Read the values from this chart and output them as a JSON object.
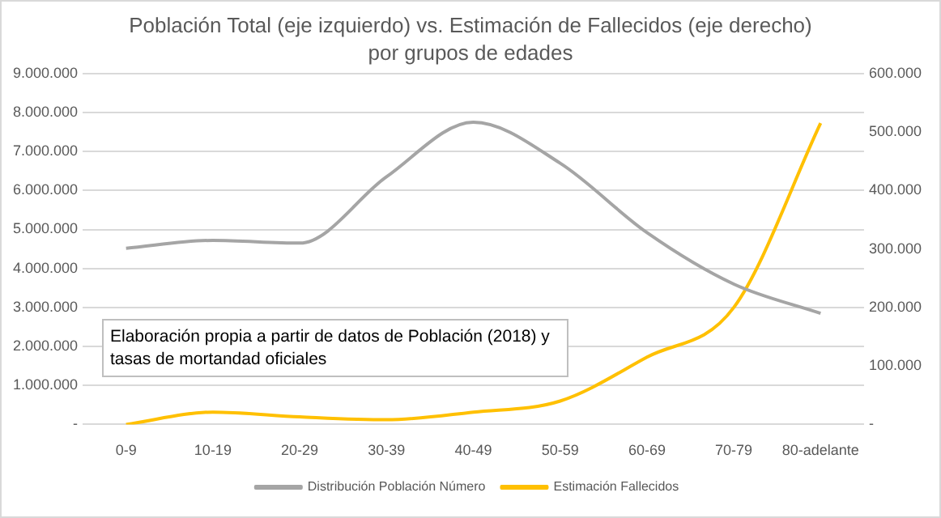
{
  "chart_data": {
    "type": "line",
    "title": "Población Total (eje izquierdo) vs. Estimación de Fallecidos (eje derecho)",
    "subtitle": "por grupos de edades",
    "categories": [
      "0-9",
      "10-19",
      "20-29",
      "30-39",
      "40-49",
      "50-59",
      "60-69",
      "70-79",
      "80-adelante"
    ],
    "series": [
      {
        "name": "Distribución Población Número",
        "color": "#a5a5a5",
        "values": [
          4520000,
          4720000,
          4650000,
          6350000,
          7750000,
          6700000,
          4920000,
          3600000,
          2850000
        ]
      },
      {
        "name": "Estimación Fallecidos",
        "color": "#ffc000",
        "axis": "y2",
        "values": [
          0,
          21000,
          13000,
          8000,
          21000,
          40000,
          115000,
          200000,
          515000
        ]
      }
    ],
    "ylim": [
      0,
      9000000
    ],
    "yticks": [
      {
        "value": 0,
        "label": "-"
      },
      {
        "value": 1000000,
        "label": "1.000.000"
      },
      {
        "value": 2000000,
        "label": "2.000.000"
      },
      {
        "value": 3000000,
        "label": "3.000.000"
      },
      {
        "value": 4000000,
        "label": "4.000.000"
      },
      {
        "value": 5000000,
        "label": "5.000.000"
      },
      {
        "value": 6000000,
        "label": "6.000.000"
      },
      {
        "value": 7000000,
        "label": "7.000.000"
      },
      {
        "value": 8000000,
        "label": "8.000.000"
      },
      {
        "value": 9000000,
        "label": "9.000.000"
      }
    ],
    "y2lim": [
      0,
      600000
    ],
    "y2ticks": [
      {
        "value": 0,
        "label": "-"
      },
      {
        "value": 100000,
        "label": "100.000"
      },
      {
        "value": 200000,
        "label": "200.000"
      },
      {
        "value": 300000,
        "label": "300.000"
      },
      {
        "value": 400000,
        "label": "400.000"
      },
      {
        "value": 500000,
        "label": "500.000"
      },
      {
        "value": 600000,
        "label": "600.000"
      }
    ],
    "grid": "y",
    "legend": "bottom",
    "marker": "none",
    "annotations": [
      "Elaboración propia a partir de datos de Población (2018) y tasas de mortandad  oficiales"
    ]
  }
}
